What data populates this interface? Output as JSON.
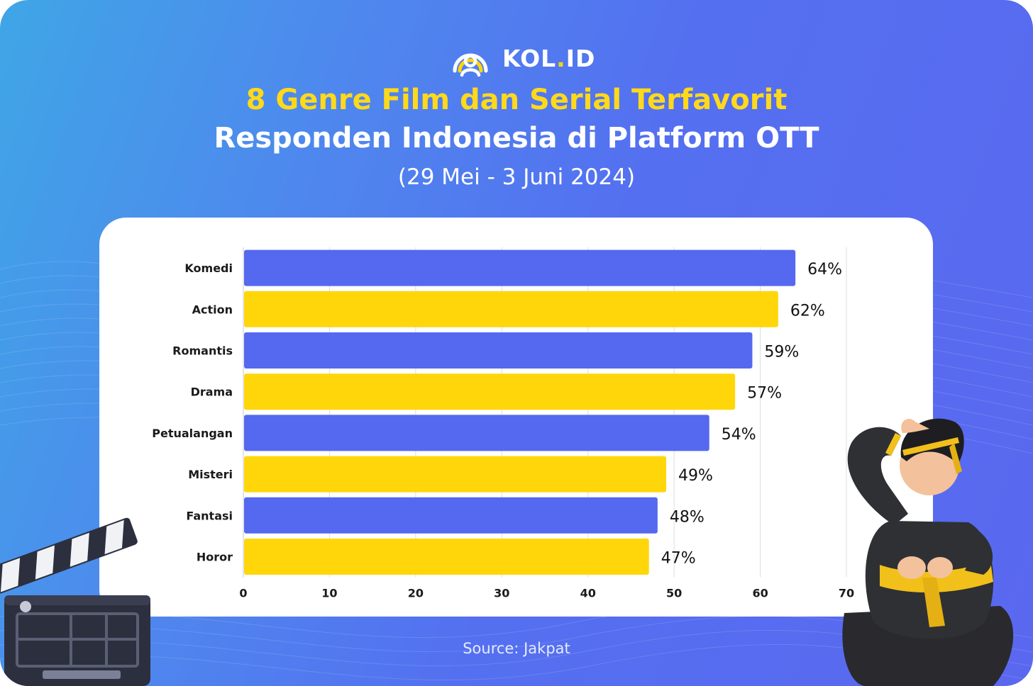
{
  "brand": {
    "name_main": "KOL",
    "name_dot": ".",
    "name_tail": "ID"
  },
  "header": {
    "title_line1": "8 Genre Film dan Serial Terfavorit",
    "title_line2": "Responden Indonesia di Platform OTT",
    "date_range": "(29 Mei - 3 Juni 2024)"
  },
  "footer": {
    "source": "Source: Jakpat"
  },
  "colors": {
    "primary_bar": "#5468f0",
    "secondary_bar": "#ffd60a",
    "accent": "#ffd91a",
    "background": "#5470f0"
  },
  "illustrations": [
    "clapperboard",
    "martial-artist"
  ],
  "chart_data": {
    "type": "bar",
    "orientation": "horizontal",
    "categories": [
      "Komedi",
      "Action",
      "Romantis",
      "Drama",
      "Petualangan",
      "Misteri",
      "Fantasi",
      "Horor"
    ],
    "values": [
      64,
      62,
      59,
      57,
      54,
      49,
      48,
      47
    ],
    "value_labels": [
      "64%",
      "62%",
      "59%",
      "57%",
      "54%",
      "49%",
      "48%",
      "47%"
    ],
    "bar_colors": [
      "#5468f0",
      "#ffd60a",
      "#5468f0",
      "#ffd60a",
      "#5468f0",
      "#ffd60a",
      "#5468f0",
      "#ffd60a"
    ],
    "xlim": [
      0,
      70
    ],
    "xticks": [
      0,
      10,
      20,
      30,
      40,
      50,
      60,
      70
    ],
    "grid": "vertical",
    "legend": "none"
  }
}
